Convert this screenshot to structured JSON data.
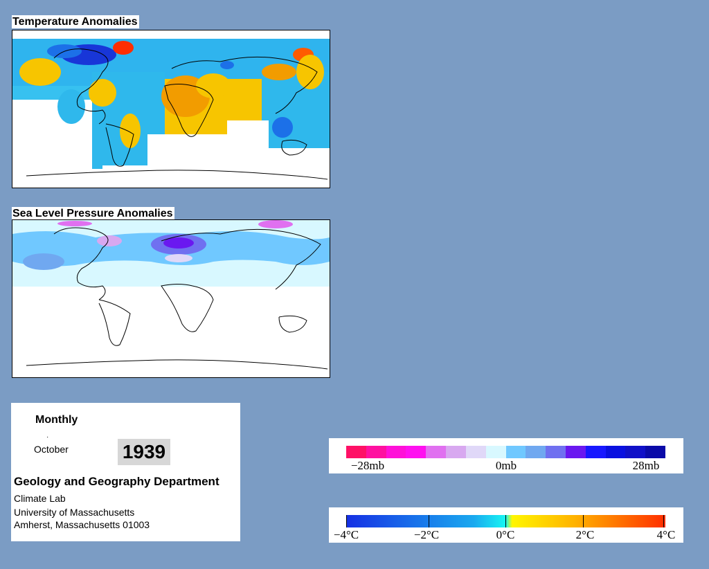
{
  "maps": {
    "temperature": {
      "title": "Temperature Anomalies"
    },
    "pressure": {
      "title": "Sea Level Pressure Anomalies"
    }
  },
  "info": {
    "period": "Monthly",
    "month": "October",
    "year": "1939",
    "department": "Geology and Geography Department",
    "lab": "Climate Lab",
    "university": "University of Massachusetts",
    "address": "Amherst, Massachusetts 01003"
  },
  "legends": {
    "pressure": {
      "labels": [
        "−28mb",
        "0mb",
        "28mb"
      ],
      "colors": [
        "#ff1066",
        "#ff10a0",
        "#ff10d8",
        "#ff10f0",
        "#e070f0",
        "#d8a8f0",
        "#e0d8f8",
        "#d8f8ff",
        "#70c8ff",
        "#70a8f0",
        "#7070f0",
        "#6a18f0",
        "#1818ff",
        "#0a10e0",
        "#1010c8",
        "#0a0aa8"
      ]
    },
    "temperature": {
      "labels": [
        "−4°C",
        "−2°C",
        "0°C",
        "2°C",
        "4°C"
      ]
    }
  }
}
